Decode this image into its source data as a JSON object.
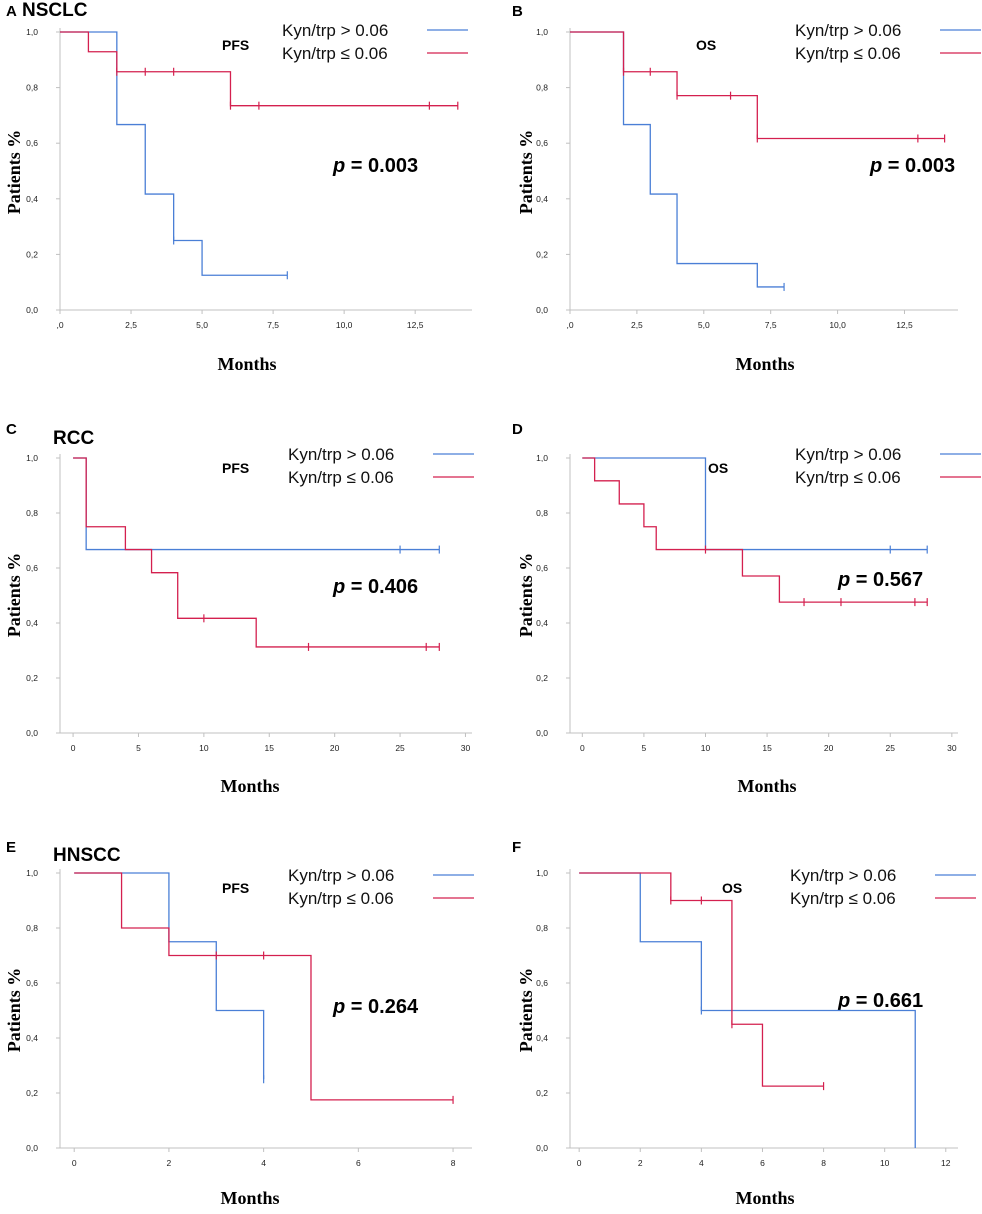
{
  "figure": {
    "panels": [
      "A",
      "B",
      "C",
      "D",
      "E",
      "F"
    ]
  },
  "colors": {
    "high": "#4a7fd6",
    "low": "#d4204f",
    "axis": "#c0c0c0",
    "text": "#000000"
  },
  "chart_data": [
    {
      "panel": "A",
      "type": "line",
      "cohort": "NSCLC",
      "endpoint": "PFS",
      "p_prefix": "p",
      "p_value": "= 0.003",
      "xlabel": "Months",
      "ylabel": "Patients %",
      "xlim": [
        0,
        14.5
      ],
      "ylim": [
        0,
        1
      ],
      "x_ticks": [
        0,
        2.5,
        5,
        7.5,
        10,
        12.5
      ],
      "x_tick_labels": [
        ",0",
        "2,5",
        "5,0",
        "7,5",
        "10,0",
        "12,5"
      ],
      "y_ticks": [
        0,
        0.2,
        0.4,
        0.6,
        0.8,
        1
      ],
      "y_tick_labels": [
        "0,0",
        "0,2",
        "0,4",
        "0,6",
        "0,8",
        "1,0"
      ],
      "series": [
        {
          "name": "Kyn/trp > 0.06",
          "color": "#4a7fd6",
          "steps": [
            [
              0,
              1
            ],
            [
              2,
              0.667
            ],
            [
              3,
              0.417
            ],
            [
              4,
              0.25
            ],
            [
              5,
              0.125
            ]
          ],
          "end": 8,
          "censored": [
            [
              4,
              0.25
            ],
            [
              8,
              0.125
            ]
          ]
        },
        {
          "name": "Kyn/trp ≤ 0.06",
          "color": "#d4204f",
          "steps": [
            [
              0,
              1
            ],
            [
              1,
              0.929
            ],
            [
              2,
              0.857
            ],
            [
              6,
              0.735
            ]
          ],
          "end": 14,
          "censored": [
            [
              2,
              0.857
            ],
            [
              3,
              0.857
            ],
            [
              4,
              0.857
            ],
            [
              6,
              0.735
            ],
            [
              7,
              0.735
            ],
            [
              13,
              0.735
            ],
            [
              14,
              0.735
            ]
          ]
        }
      ]
    },
    {
      "panel": "B",
      "type": "line",
      "cohort": "",
      "endpoint": "OS",
      "p_prefix": "p",
      "p_value": "= 0.003",
      "xlabel": "Months",
      "ylabel": "Patients %",
      "xlim": [
        0,
        14.5
      ],
      "ylim": [
        0,
        1
      ],
      "x_ticks": [
        0,
        2.5,
        5,
        7.5,
        10,
        12.5
      ],
      "x_tick_labels": [
        ",0",
        "2,5",
        "5,0",
        "7,5",
        "10,0",
        "12,5"
      ],
      "y_ticks": [
        0,
        0.2,
        0.4,
        0.6,
        0.8,
        1
      ],
      "y_tick_labels": [
        "0,0",
        "0,2",
        "0,4",
        "0,6",
        "0,8",
        "1,0"
      ],
      "series": [
        {
          "name": "Kyn/trp > 0.06",
          "color": "#4a7fd6",
          "steps": [
            [
              0,
              1
            ],
            [
              2,
              0.667
            ],
            [
              3,
              0.417
            ],
            [
              4,
              0.167
            ],
            [
              7,
              0.083
            ]
          ],
          "end": 8,
          "censored": [
            [
              8,
              0.083
            ]
          ]
        },
        {
          "name": "Kyn/trp ≤ 0.06",
          "color": "#d4204f",
          "steps": [
            [
              0,
              1
            ],
            [
              2,
              0.857
            ],
            [
              4,
              0.771
            ],
            [
              7,
              0.617
            ]
          ],
          "end": 14,
          "censored": [
            [
              2,
              0.857
            ],
            [
              3,
              0.857
            ],
            [
              4,
              0.771
            ],
            [
              6,
              0.771
            ],
            [
              7,
              0.617
            ],
            [
              13,
              0.617
            ],
            [
              14,
              0.617
            ]
          ]
        }
      ]
    },
    {
      "panel": "C",
      "type": "line",
      "cohort": "RCC",
      "endpoint": "PFS",
      "p_prefix": "p",
      "p_value": "= 0.406",
      "xlabel": "Months",
      "ylabel": "Patients %",
      "xlim": [
        -1,
        30.5
      ],
      "ylim": [
        0,
        1
      ],
      "x_ticks": [
        0,
        5,
        10,
        15,
        20,
        25,
        30
      ],
      "x_tick_labels": [
        "0",
        "5",
        "10",
        "15",
        "20",
        "25",
        "30"
      ],
      "y_ticks": [
        0,
        0.2,
        0.4,
        0.6,
        0.8,
        1
      ],
      "y_tick_labels": [
        "0,0",
        "0,2",
        "0,4",
        "0,6",
        "0,8",
        "1,0"
      ],
      "series": [
        {
          "name": "Kyn/trp > 0.06",
          "color": "#4a7fd6",
          "steps": [
            [
              0,
              1
            ],
            [
              1,
              0.667
            ]
          ],
          "end": 28,
          "censored": [
            [
              25,
              0.667
            ],
            [
              28,
              0.667
            ]
          ]
        },
        {
          "name": "Kyn/trp ≤ 0.06",
          "color": "#d4204f",
          "steps": [
            [
              0,
              1
            ],
            [
              1,
              0.75
            ],
            [
              4,
              0.667
            ],
            [
              6,
              0.583
            ],
            [
              8,
              0.417
            ],
            [
              14,
              0.313
            ]
          ],
          "end": 28,
          "censored": [
            [
              10,
              0.417
            ],
            [
              18,
              0.313
            ],
            [
              27,
              0.313
            ],
            [
              28,
              0.313
            ]
          ]
        }
      ]
    },
    {
      "panel": "D",
      "type": "line",
      "cohort": "",
      "endpoint": "OS",
      "p_prefix": "p",
      "p_value": "= 0.567",
      "xlabel": "Months",
      "ylabel": "Patients %",
      "xlim": [
        -1,
        30.5
      ],
      "ylim": [
        0,
        1
      ],
      "x_ticks": [
        0,
        5,
        10,
        15,
        20,
        25,
        30
      ],
      "x_tick_labels": [
        "0",
        "5",
        "10",
        "15",
        "20",
        "25",
        "30"
      ],
      "y_ticks": [
        0,
        0.2,
        0.4,
        0.6,
        0.8,
        1
      ],
      "y_tick_labels": [
        "0,0",
        "0,2",
        "0,4",
        "0,6",
        "0,8",
        "1,0"
      ],
      "series": [
        {
          "name": "Kyn/trp > 0.06",
          "color": "#4a7fd6",
          "steps": [
            [
              0,
              1
            ],
            [
              10,
              0.667
            ]
          ],
          "end": 28,
          "censored": [
            [
              25,
              0.667
            ],
            [
              28,
              0.667
            ]
          ]
        },
        {
          "name": "Kyn/trp ≤ 0.06",
          "color": "#d4204f",
          "steps": [
            [
              0,
              1
            ],
            [
              1,
              0.917
            ],
            [
              3,
              0.833
            ],
            [
              5,
              0.75
            ],
            [
              6,
              0.667
            ],
            [
              13,
              0.571
            ],
            [
              16,
              0.476
            ]
          ],
          "end": 28,
          "censored": [
            [
              10,
              0.667
            ],
            [
              18,
              0.476
            ],
            [
              21,
              0.476
            ],
            [
              27,
              0.476
            ],
            [
              28,
              0.476
            ]
          ]
        }
      ]
    },
    {
      "panel": "E",
      "type": "line",
      "cohort": "HNSCC",
      "endpoint": "PFS",
      "p_prefix": "p",
      "p_value": "= 0.264",
      "xlabel": "Months",
      "ylabel": "Patients %",
      "xlim": [
        -0.3,
        8.4
      ],
      "ylim": [
        0,
        1
      ],
      "x_ticks": [
        0,
        2,
        4,
        6,
        8
      ],
      "x_tick_labels": [
        "0",
        "2",
        "4",
        "6",
        "8"
      ],
      "y_ticks": [
        0,
        0.2,
        0.4,
        0.6,
        0.8,
        1
      ],
      "y_tick_labels": [
        "0,0",
        "0,2",
        "0,4",
        "0,6",
        "0,8",
        "1,0"
      ],
      "series": [
        {
          "name": "Kyn/trp > 0.06",
          "color": "#4a7fd6",
          "steps": [
            [
              0,
              1
            ],
            [
              2,
              0.75
            ],
            [
              3,
              0.5
            ],
            [
              4,
              0.25
            ]
          ],
          "end": 4,
          "censored": [
            [
              4,
              0.25
            ]
          ]
        },
        {
          "name": "Kyn/trp ≤ 0.06",
          "color": "#d4204f",
          "steps": [
            [
              0,
              1
            ],
            [
              1,
              0.8
            ],
            [
              2,
              0.7
            ],
            [
              5,
              0.175
            ]
          ],
          "end": 8,
          "censored": [
            [
              3,
              0.7
            ],
            [
              4,
              0.7
            ],
            [
              8,
              0.175
            ]
          ]
        }
      ]
    },
    {
      "panel": "F",
      "type": "line",
      "cohort": "",
      "endpoint": "OS",
      "p_prefix": "p",
      "p_value": "= 0.661",
      "xlabel": "Months",
      "ylabel": "Patients %",
      "xlim": [
        -0.3,
        12.4
      ],
      "ylim": [
        0,
        1
      ],
      "x_ticks": [
        0,
        2,
        4,
        6,
        8,
        10,
        12
      ],
      "x_tick_labels": [
        "0",
        "2",
        "4",
        "6",
        "8",
        "10",
        "12"
      ],
      "y_ticks": [
        0,
        0.2,
        0.4,
        0.6,
        0.8,
        1
      ],
      "y_tick_labels": [
        "0,0",
        "0,2",
        "0,4",
        "0,6",
        "0,8",
        "1,0"
      ],
      "series": [
        {
          "name": "Kyn/trp > 0.06",
          "color": "#4a7fd6",
          "steps": [
            [
              0,
              1
            ],
            [
              2,
              0.75
            ],
            [
              4,
              0.5
            ],
            [
              11,
              0
            ]
          ],
          "end": 11,
          "censored": [
            [
              4,
              0.5
            ]
          ]
        },
        {
          "name": "Kyn/trp ≤ 0.06",
          "color": "#d4204f",
          "steps": [
            [
              0,
              1
            ],
            [
              3,
              0.9
            ],
            [
              5,
              0.45
            ],
            [
              6,
              0.225
            ]
          ],
          "end": 8,
          "censored": [
            [
              3,
              0.9
            ],
            [
              4,
              0.9
            ],
            [
              5,
              0.45
            ],
            [
              8,
              0.225
            ]
          ]
        }
      ]
    }
  ]
}
